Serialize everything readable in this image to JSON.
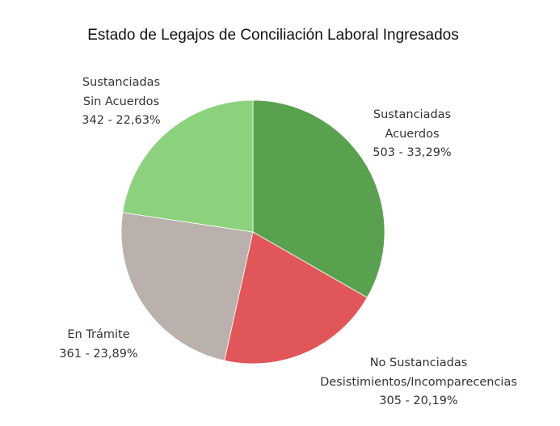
{
  "chart_data": {
    "type": "pie",
    "title": "Estado de Legajos de Conciliación Laboral Ingresados",
    "slices": [
      {
        "label_lines": [
          "Sustanciadas",
          "Acuerdos"
        ],
        "value": 503,
        "percent": "33,29%",
        "value_text": "503 - 33,29%",
        "color": "#59a14f"
      },
      {
        "label_lines": [
          "No Sustanciadas",
          "Desistimientos/Incomparecencias"
        ],
        "value": 305,
        "percent": "20,19%",
        "value_text": "305 - 20,19%",
        "color": "#e15759"
      },
      {
        "label_lines": [
          "En Trámite"
        ],
        "value": 361,
        "percent": "23,89%",
        "value_text": "361 - 23,89%",
        "color": "#bab0ac"
      },
      {
        "label_lines": [
          "Sustanciadas",
          "Sin Acuerdos"
        ],
        "value": 342,
        "percent": "22,63%",
        "value_text": "342 - 22,63%",
        "color": "#8cd17d"
      }
    ],
    "start_angle": "top",
    "direction": "clockwise",
    "legend": "none"
  }
}
